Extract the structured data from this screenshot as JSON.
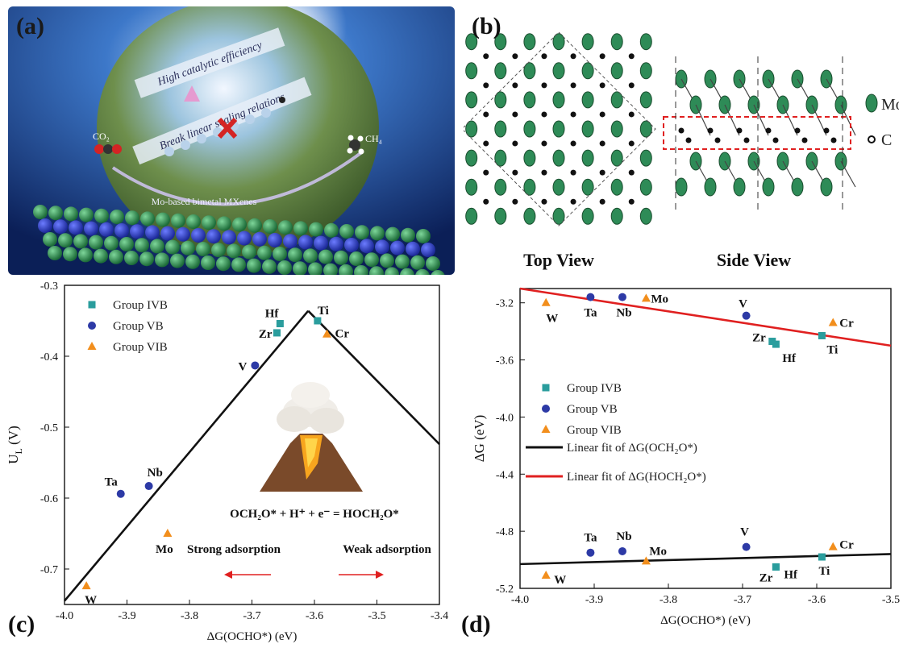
{
  "panels": {
    "a": {
      "label": "(a)",
      "text_efficiency": "High catalytic efficiency",
      "text_scaling": "Break linear scaling relations",
      "text_co2": "CO₂",
      "text_ch4": "CH₄",
      "text_mxene": "Mo-based bimetal MXenes"
    },
    "b": {
      "label": "(b)",
      "top_view": "Top View",
      "side_view": "Side View",
      "legend_mo": "Mo",
      "legend_c": "C",
      "colors": {
        "mo": "#2e8b57",
        "c": "#111111",
        "highlight": "#e02020"
      }
    },
    "c": {
      "label": "(c)",
      "reaction": "OCH₂O* + H⁺ + e⁻ = HOCH₂O*",
      "strong": "Strong adsorption",
      "weak": "Weak adsorption"
    },
    "d": {
      "label": "(d)"
    }
  },
  "chart_data": [
    {
      "panel": "c",
      "type": "scatter",
      "xlabel": "ΔG(OCHO*) (eV)",
      "ylabel": "U_L (V)",
      "xlim": [
        -4.0,
        -3.4
      ],
      "ylim": [
        -0.75,
        -0.3
      ],
      "xticks": [
        "-4.0",
        "-3.9",
        "-3.8",
        "-3.7",
        "-3.6",
        "-3.5",
        "-3.4"
      ],
      "yticks": [
        "-0.3",
        "-0.4",
        "-0.5",
        "-0.6",
        "-0.7"
      ],
      "ytick_values": [
        -0.3,
        -0.4,
        -0.5,
        -0.6,
        -0.7
      ],
      "legend_position": "top-left",
      "series": [
        {
          "name": "Group IVB",
          "marker": "square",
          "color": "#2a9d9d",
          "points": [
            {
              "label": "Hf",
              "x": -3.655,
              "y": -0.354
            },
            {
              "label": "Zr",
              "x": -3.66,
              "y": -0.367
            },
            {
              "label": "Ti",
              "x": -3.595,
              "y": -0.35
            }
          ]
        },
        {
          "name": "Group VB",
          "marker": "circle",
          "color": "#2d3aa6",
          "points": [
            {
              "label": "V",
              "x": -3.695,
              "y": -0.413
            },
            {
              "label": "Ta",
              "x": -3.91,
              "y": -0.594
            },
            {
              "label": "Nb",
              "x": -3.865,
              "y": -0.583
            }
          ]
        },
        {
          "name": "Group VIB",
          "marker": "triangle",
          "color": "#f28e1c",
          "points": [
            {
              "label": "Cr",
              "x": -3.58,
              "y": -0.369
            },
            {
              "label": "Mo",
              "x": -3.835,
              "y": -0.65
            },
            {
              "label": "W",
              "x": -3.965,
              "y": -0.724
            }
          ]
        }
      ],
      "volcano_lines": [
        {
          "x": [
            -4.0,
            -3.61
          ],
          "y": [
            -0.745,
            -0.336
          ]
        },
        {
          "x": [
            -3.61,
            -3.4
          ],
          "y": [
            -0.336,
            -0.524
          ]
        }
      ]
    },
    {
      "panel": "d",
      "type": "scatter",
      "xlabel": "ΔG(OCHO*) (eV)",
      "ylabel": "ΔG (eV)",
      "xlim": [
        -4.0,
        -3.5
      ],
      "ylim": [
        -5.2,
        -3.1
      ],
      "xticks": [
        "-4.0",
        "-3.9",
        "-3.8",
        "-3.7",
        "-3.6",
        "-3.5"
      ],
      "yticks": [
        "-3.2",
        "-3.6",
        "-4.0",
        "-4.4",
        "-4.8",
        "-5.2"
      ],
      "ytick_values": [
        -3.2,
        -3.6,
        -4.0,
        -4.4,
        -4.8,
        -5.2
      ],
      "legend_position": "center-left",
      "series": [
        {
          "name": "Group IVB",
          "marker": "square",
          "color": "#2a9d9d",
          "points": [
            {
              "label": "Zr",
              "x": -3.66,
              "y": -3.47
            },
            {
              "label": "Hf",
              "x": -3.655,
              "y": -3.49
            },
            {
              "label": "Ti",
              "x": -3.593,
              "y": -3.43
            },
            {
              "label": "Zr",
              "x": -3.655,
              "y": -5.05
            },
            {
              "label": "Hf",
              "x": -3.655,
              "y": -5.05
            },
            {
              "label": "Ti",
              "x": -3.593,
              "y": -4.98
            }
          ]
        },
        {
          "name": "Group VB",
          "marker": "circle",
          "color": "#2d3aa6",
          "points": [
            {
              "label": "Ta",
              "x": -3.905,
              "y": -3.16
            },
            {
              "label": "Nb",
              "x": -3.862,
              "y": -3.16
            },
            {
              "label": "V",
              "x": -3.695,
              "y": -3.29
            },
            {
              "label": "Ta",
              "x": -3.905,
              "y": -4.95
            },
            {
              "label": "Nb",
              "x": -3.862,
              "y": -4.94
            },
            {
              "label": "V",
              "x": -3.695,
              "y": -4.91
            }
          ]
        },
        {
          "name": "Group VIB",
          "marker": "triangle",
          "color": "#f28e1c",
          "points": [
            {
              "label": "W",
              "x": -3.965,
              "y": -3.2
            },
            {
              "label": "Mo",
              "x": -3.83,
              "y": -3.17
            },
            {
              "label": "Cr",
              "x": -3.578,
              "y": -3.34
            },
            {
              "label": "W",
              "x": -3.965,
              "y": -5.11
            },
            {
              "label": "Mo",
              "x": -3.83,
              "y": -5.01
            },
            {
              "label": "Cr",
              "x": -3.578,
              "y": -4.91
            }
          ]
        }
      ],
      "fit_lines": [
        {
          "name": "Linear fit of ΔG(OCH₂O*)",
          "color": "#111111",
          "x": [
            -4.0,
            -3.5
          ],
          "y": [
            -5.03,
            -4.96
          ]
        },
        {
          "name": "Linear fit of ΔG(HOCH₂O*)",
          "color": "#e02020",
          "x": [
            -4.0,
            -3.5
          ],
          "y": [
            -3.1,
            -3.5
          ]
        }
      ]
    }
  ]
}
